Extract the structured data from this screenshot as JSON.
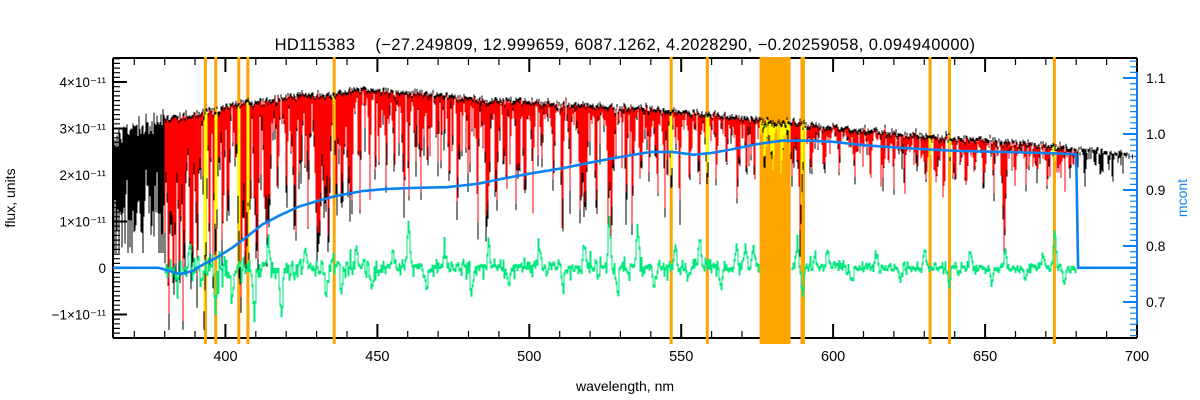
{
  "chart": {
    "title": "HD115383    (−27.249809, 12.999659, 6087.1262, 4.2028290, −0.20259058, 0.094940000)",
    "x_axis": {
      "label": "wavelength, nm",
      "range_nm": [
        363,
        700
      ],
      "major_ticks": [
        400,
        450,
        500,
        550,
        600,
        650,
        700
      ],
      "minor_step_nm": 10
    },
    "y_axis_left": {
      "label": "flux, units",
      "range_e11": [
        -1.48,
        4.52
      ],
      "major_ticks": [
        {
          "v": 4,
          "label": "4×10⁻¹¹"
        },
        {
          "v": 3,
          "label": "3×10⁻¹¹"
        },
        {
          "v": 2,
          "label": "2×10⁻¹¹"
        },
        {
          "v": 1,
          "label": "1×10⁻¹¹"
        },
        {
          "v": 0,
          "label": "0"
        },
        {
          "v": -1,
          "label": "−1×10⁻¹¹"
        }
      ],
      "minor_step_e11": 0.1
    },
    "y_axis_right": {
      "label": "mcont",
      "color": "#0C82F0",
      "range": [
        0.64,
        1.14
      ],
      "major_ticks": [
        {
          "v": 1.1,
          "label": "1.1"
        },
        {
          "v": 1.0,
          "label": "1.0"
        },
        {
          "v": 0.9,
          "label": "0.9"
        },
        {
          "v": 0.8,
          "label": "0.8"
        },
        {
          "v": 0.7,
          "label": "0.7"
        }
      ],
      "minor_step": 0.01
    }
  },
  "chart_data": {
    "type": "line",
    "title": "HD115383 (−27.249809, 12.999659, 6087.1262, 4.2028290, −0.20259058, 0.094940000)",
    "xlabel": "wavelength, nm",
    "ylabel_left": "flux, units",
    "ylabel_right": "mcont",
    "xlim": [
      363,
      700
    ],
    "ylim_left_e11": [
      -1.48,
      4.52
    ],
    "ylim_right": [
      0.64,
      1.14
    ],
    "colors": {
      "black": "#000000",
      "red": "#FF0000",
      "yellow": "#FFFF00",
      "green": "#00E87C",
      "blue": "#0C82F0",
      "orange": "#FFA500"
    },
    "noise_seed": 77,
    "series": [
      {
        "name": "observed flux spectrum",
        "color": "#000000",
        "axis": "left",
        "range_nm": [
          363,
          697
        ],
        "envelope_top_nm_flux_e11": [
          [
            363,
            2.75
          ],
          [
            368,
            2.92
          ],
          [
            373,
            3.02
          ],
          [
            378,
            3.15
          ],
          [
            381,
            3.22
          ],
          [
            385,
            3.27
          ],
          [
            390,
            3.32
          ],
          [
            395,
            3.38
          ],
          [
            400,
            3.5
          ],
          [
            405,
            3.56
          ],
          [
            410,
            3.6
          ],
          [
            415,
            3.63
          ],
          [
            420,
            3.68
          ],
          [
            425,
            3.76
          ],
          [
            430,
            3.73
          ],
          [
            435,
            3.73
          ],
          [
            440,
            3.8
          ],
          [
            445,
            3.86
          ],
          [
            450,
            3.83
          ],
          [
            455,
            3.81
          ],
          [
            460,
            3.79
          ],
          [
            465,
            3.76
          ],
          [
            470,
            3.73
          ],
          [
            475,
            3.71
          ],
          [
            480,
            3.66
          ],
          [
            485,
            3.62
          ],
          [
            490,
            3.62
          ],
          [
            495,
            3.61
          ],
          [
            500,
            3.59
          ],
          [
            505,
            3.57
          ],
          [
            510,
            3.55
          ],
          [
            515,
            3.53
          ],
          [
            520,
            3.51
          ],
          [
            525,
            3.5
          ],
          [
            530,
            3.48
          ],
          [
            535,
            3.46
          ],
          [
            540,
            3.44
          ],
          [
            545,
            3.41
          ],
          [
            550,
            3.38
          ],
          [
            555,
            3.35
          ],
          [
            560,
            3.31
          ],
          [
            565,
            3.29
          ],
          [
            570,
            3.25
          ],
          [
            575,
            3.21
          ],
          [
            580,
            3.18
          ],
          [
            585,
            3.15
          ],
          [
            590,
            3.11
          ],
          [
            595,
            3.08
          ],
          [
            600,
            3.04
          ],
          [
            605,
            3.01
          ],
          [
            610,
            2.98
          ],
          [
            615,
            2.95
          ],
          [
            620,
            2.93
          ],
          [
            625,
            2.9
          ],
          [
            630,
            2.87
          ],
          [
            635,
            2.84
          ],
          [
            640,
            2.81
          ],
          [
            645,
            2.79
          ],
          [
            650,
            2.76
          ],
          [
            655,
            2.73
          ],
          [
            660,
            2.71
          ],
          [
            665,
            2.68
          ],
          [
            670,
            2.64
          ],
          [
            675,
            2.61
          ],
          [
            680,
            2.58
          ],
          [
            685,
            2.55
          ],
          [
            690,
            2.51
          ],
          [
            695,
            2.47
          ],
          [
            700,
            2.44
          ]
        ]
      },
      {
        "name": "fitted model flux",
        "color": "#FF0000",
        "axis": "left",
        "range_nm": [
          380,
          680
        ],
        "top_offset_e11": -0.055,
        "depth_scale": 0.84
      },
      {
        "name": "flagged spectrum pixels (inside masked regions)",
        "color": "#FFFF00",
        "axis": "left"
      },
      {
        "name": "residuals (obs - model)",
        "color": "#00E87C",
        "axis": "left",
        "range_nm": [
          380,
          680
        ],
        "baseline_e11": 0,
        "sigma_e11_regions": [
          [
            380,
            400,
            0.15
          ],
          [
            400,
            450,
            0.11
          ],
          [
            450,
            520,
            0.086
          ],
          [
            520,
            560,
            0.097
          ],
          [
            560,
            600,
            0.071
          ],
          [
            600,
            650,
            0.056
          ],
          [
            650,
            680,
            0.045
          ]
        ],
        "spikes_nm_e11": [
          [
            384,
            -0.6
          ],
          [
            388,
            0.4
          ],
          [
            392,
            -0.5
          ],
          [
            396.5,
            -0.7
          ],
          [
            402,
            -0.6
          ],
          [
            409.3,
            -1.15
          ],
          [
            414,
            0.5
          ],
          [
            418.3,
            -1.05
          ],
          [
            426,
            0.5
          ],
          [
            433,
            -0.6
          ],
          [
            438,
            -0.5
          ],
          [
            443,
            0.45
          ],
          [
            448,
            -0.5
          ],
          [
            455,
            0.4
          ],
          [
            460.1,
            0.92
          ],
          [
            466,
            -0.45
          ],
          [
            472,
            0.4
          ],
          [
            481,
            -0.5
          ],
          [
            486.5,
            0.5
          ],
          [
            493,
            -0.4
          ],
          [
            503,
            0.45
          ],
          [
            511,
            -0.5
          ],
          [
            518,
            0.5
          ],
          [
            526.2,
            1.07
          ],
          [
            529,
            -0.65
          ],
          [
            535.5,
            0.86
          ],
          [
            541,
            -0.5
          ],
          [
            548,
            0.45
          ],
          [
            552,
            -0.4
          ],
          [
            556,
            0.75
          ],
          [
            563,
            -0.4
          ],
          [
            568,
            0.4
          ],
          [
            571,
            0.5
          ],
          [
            573.5,
            0.5
          ],
          [
            588,
            0.55
          ],
          [
            589.8,
            -0.6
          ],
          [
            594,
            0.35
          ],
          [
            598,
            0.4
          ],
          [
            606,
            -0.35
          ],
          [
            614,
            0.35
          ],
          [
            622,
            -0.3
          ],
          [
            630,
            0.4
          ],
          [
            638,
            -0.35
          ],
          [
            645,
            0.3
          ],
          [
            652,
            -0.3
          ],
          [
            656.5,
            0.4
          ],
          [
            663,
            -0.3
          ],
          [
            669,
            0.35
          ],
          [
            672.8,
            0.82
          ],
          [
            676,
            -0.3
          ]
        ]
      },
      {
        "name": "mcont continuum curve",
        "color": "#0C82F0",
        "axis": "right",
        "points_nm_mcont": [
          [
            363,
            0.761
          ],
          [
            378,
            0.761
          ],
          [
            382,
            0.755
          ],
          [
            385,
            0.75
          ],
          [
            389,
            0.755
          ],
          [
            393,
            0.768
          ],
          [
            397,
            0.779
          ],
          [
            402,
            0.796
          ],
          [
            407,
            0.816
          ],
          [
            412,
            0.838
          ],
          [
            418,
            0.855
          ],
          [
            424,
            0.87
          ],
          [
            430,
            0.88
          ],
          [
            436,
            0.889
          ],
          [
            445,
            0.898
          ],
          [
            453,
            0.902
          ],
          [
            463,
            0.904
          ],
          [
            473,
            0.905
          ],
          [
            483,
            0.911
          ],
          [
            492,
            0.921
          ],
          [
            501,
            0.93
          ],
          [
            511,
            0.939
          ],
          [
            521,
            0.95
          ],
          [
            530,
            0.959
          ],
          [
            540,
            0.968
          ],
          [
            547,
            0.968
          ],
          [
            554,
            0.963
          ],
          [
            560,
            0.966
          ],
          [
            567,
            0.973
          ],
          [
            575,
            0.982
          ],
          [
            583,
            0.988
          ],
          [
            592,
            0.988
          ],
          [
            600,
            0.986
          ],
          [
            610,
            0.98
          ],
          [
            623,
            0.975
          ],
          [
            640,
            0.97
          ],
          [
            656,
            0.968
          ],
          [
            669,
            0.966
          ],
          [
            680,
            0.964
          ],
          [
            680.6,
            0.761
          ],
          [
            700,
            0.761
          ]
        ]
      }
    ],
    "absorption_lines_nm_depth_e11": [
      [
        381.5,
        2.9
      ],
      [
        383.2,
        2.8
      ],
      [
        385.0,
        2.5
      ],
      [
        386.5,
        2.2
      ],
      [
        388.9,
        2.9
      ],
      [
        390.6,
        2.3
      ],
      [
        393.4,
        3.0
      ],
      [
        396.8,
        2.95
      ],
      [
        399.0,
        1.8
      ],
      [
        400.9,
        1.9
      ],
      [
        404.6,
        2.6
      ],
      [
        406.0,
        2.0
      ],
      [
        407.3,
        2.5
      ],
      [
        410.2,
        2.9
      ],
      [
        413.1,
        2.0
      ],
      [
        414.4,
        2.2
      ],
      [
        417.2,
        1.9
      ],
      [
        420.2,
        1.8
      ],
      [
        422.7,
        2.6
      ],
      [
        425.0,
        1.9
      ],
      [
        427.2,
        2.0
      ],
      [
        430.0,
        2.3
      ],
      [
        430.8,
        2.5
      ],
      [
        432.6,
        2.1
      ],
      [
        434.0,
        2.9
      ],
      [
        436.5,
        1.9
      ],
      [
        438.4,
        2.6
      ],
      [
        440.5,
        2.0
      ],
      [
        441.6,
        1.9
      ],
      [
        444.2,
        1.7
      ],
      [
        447.5,
        1.6
      ],
      [
        450.5,
        1.4
      ],
      [
        452.9,
        1.7
      ],
      [
        455.5,
        1.5
      ],
      [
        458.5,
        1.4
      ],
      [
        460.3,
        1.3
      ],
      [
        462.5,
        1.4
      ],
      [
        464.5,
        1.3
      ],
      [
        466.5,
        1.4
      ],
      [
        470.0,
        1.3
      ],
      [
        473.5,
        1.3
      ],
      [
        476.5,
        1.5
      ],
      [
        480.0,
        1.3
      ],
      [
        483.0,
        1.4
      ],
      [
        486.1,
        2.95
      ],
      [
        489.2,
        1.8
      ],
      [
        492.4,
        1.7
      ],
      [
        495.8,
        1.5
      ],
      [
        498.5,
        1.7
      ],
      [
        501.2,
        1.6
      ],
      [
        504.2,
        1.4
      ],
      [
        508.0,
        1.5
      ],
      [
        511.0,
        1.4
      ],
      [
        513.5,
        1.5
      ],
      [
        516.9,
        2.4
      ],
      [
        518.4,
        2.3
      ],
      [
        522.0,
        1.5
      ],
      [
        526.0,
        1.6
      ],
      [
        527.0,
        2.5
      ],
      [
        532.0,
        1.5
      ],
      [
        534.0,
        1.4
      ],
      [
        537.0,
        1.4
      ],
      [
        539.5,
        1.3
      ],
      [
        542.0,
        1.2
      ],
      [
        544.5,
        1.3
      ],
      [
        546.7,
        1.5
      ],
      [
        549.5,
        1.4
      ],
      [
        552.8,
        1.5
      ],
      [
        556.0,
        1.3
      ],
      [
        558.5,
        1.4
      ],
      [
        561.5,
        1.2
      ],
      [
        565.0,
        1.1
      ],
      [
        568.5,
        1.2
      ],
      [
        571.5,
        1.1
      ],
      [
        574.0,
        1.0
      ],
      [
        577.5,
        0.8
      ],
      [
        580.1,
        0.9
      ],
      [
        583.0,
        0.8
      ],
      [
        586.5,
        1.0
      ],
      [
        589.3,
        2.3
      ],
      [
        593.0,
        0.9
      ],
      [
        597.0,
        0.9
      ],
      [
        602.0,
        0.9
      ],
      [
        607.0,
        0.9
      ],
      [
        612.2,
        1.0
      ],
      [
        616.5,
        1.1
      ],
      [
        620.0,
        0.8
      ],
      [
        623.5,
        0.9
      ],
      [
        627.5,
        0.9
      ],
      [
        630.5,
        1.0
      ],
      [
        634.0,
        0.9
      ],
      [
        636.5,
        0.8
      ],
      [
        640.0,
        0.8
      ],
      [
        643.5,
        0.7
      ],
      [
        646.5,
        0.8
      ],
      [
        649.5,
        0.8
      ],
      [
        653.0,
        0.7
      ],
      [
        656.3,
        2.3
      ],
      [
        660.0,
        0.6
      ],
      [
        663.5,
        0.6
      ],
      [
        667.0,
        0.6
      ],
      [
        670.5,
        0.7
      ],
      [
        674.0,
        0.5
      ],
      [
        678.0,
        0.5
      ],
      [
        683.0,
        0.4
      ],
      [
        688.0,
        0.5
      ],
      [
        692.0,
        0.3
      ]
    ],
    "comb_mean_depth_e11_regions": [
      [
        363,
        380,
        1.8
      ],
      [
        380,
        400,
        0.9
      ],
      [
        400,
        450,
        0.56
      ],
      [
        450,
        500,
        0.47
      ],
      [
        500,
        550,
        0.41
      ],
      [
        550,
        575.8,
        0.28
      ],
      [
        575.8,
        586,
        0.24
      ],
      [
        586,
        600,
        0.26
      ],
      [
        600,
        650,
        0.215
      ],
      [
        650,
        680,
        0.17
      ],
      [
        680,
        697,
        0.11
      ]
    ],
    "masked_regions": {
      "band_nm": [
        575.8,
        586.0
      ],
      "band_color": "#FFA500",
      "residual_gap_nm": [
        575.8,
        586.4
      ],
      "lines": [
        {
          "c": 393.4,
          "hw": 0.55
        },
        {
          "c": 396.8,
          "hw": 0.55
        },
        {
          "c": 404.4,
          "hw": 0.55
        },
        {
          "c": 407.4,
          "hw": 0.55
        },
        {
          "c": 435.8,
          "hw": 0.55
        },
        {
          "c": 546.7,
          "hw": 0.55
        },
        {
          "c": 558.6,
          "hw": 0.55
        },
        {
          "c": 590.0,
          "hw": 0.75
        },
        {
          "c": 631.9,
          "hw": 0.55
        },
        {
          "c": 638.3,
          "hw": 0.55
        },
        {
          "c": 672.8,
          "hw": 0.55
        }
      ]
    }
  }
}
